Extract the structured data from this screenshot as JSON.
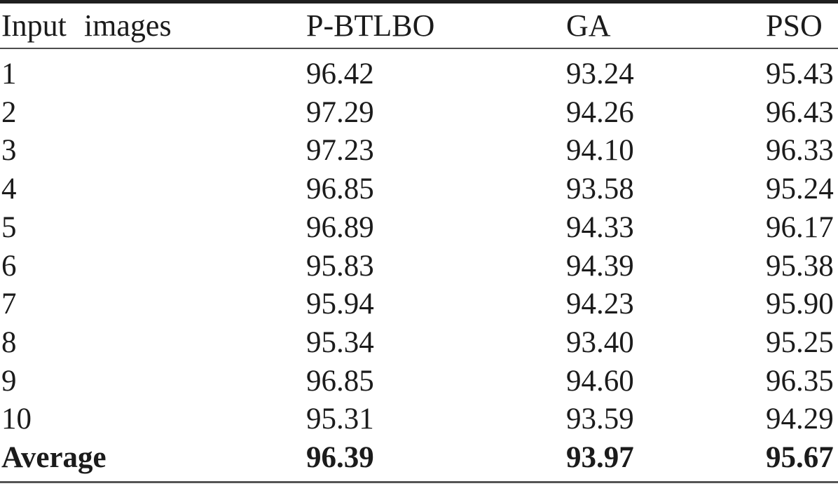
{
  "table": {
    "columns": [
      "Input images",
      "P-BTLBO",
      "GA",
      "PSO"
    ],
    "rows": [
      {
        "label": "1",
        "pbtlbo": "96.42",
        "ga": "93.24",
        "pso": "95.43"
      },
      {
        "label": "2",
        "pbtlbo": "97.29",
        "ga": "94.26",
        "pso": "96.43"
      },
      {
        "label": "3",
        "pbtlbo": "97.23",
        "ga": "94.10",
        "pso": "96.33"
      },
      {
        "label": "4",
        "pbtlbo": "96.85",
        "ga": "93.58",
        "pso": "95.24"
      },
      {
        "label": "5",
        "pbtlbo": "96.89",
        "ga": "94.33",
        "pso": "96.17"
      },
      {
        "label": "6",
        "pbtlbo": "95.83",
        "ga": "94.39",
        "pso": "95.38"
      },
      {
        "label": "7",
        "pbtlbo": "95.94",
        "ga": "94.23",
        "pso": "95.90"
      },
      {
        "label": "8",
        "pbtlbo": "95.34",
        "ga": "93.40",
        "pso": "95.25"
      },
      {
        "label": "9",
        "pbtlbo": "96.85",
        "ga": "94.60",
        "pso": "96.35"
      },
      {
        "label": "10",
        "pbtlbo": "95.31",
        "ga": "93.59",
        "pso": "94.29"
      }
    ],
    "average": {
      "label": "Average",
      "pbtlbo": "96.39",
      "ga": "93.97",
      "pso": "95.67"
    }
  },
  "chart_data": {
    "type": "table",
    "columns": [
      "Input images",
      "P-BTLBO",
      "GA",
      "PSO"
    ],
    "rows": [
      [
        "1",
        96.42,
        93.24,
        95.43
      ],
      [
        "2",
        97.29,
        94.26,
        96.43
      ],
      [
        "3",
        97.23,
        94.1,
        96.33
      ],
      [
        "4",
        96.85,
        93.58,
        95.24
      ],
      [
        "5",
        96.89,
        94.33,
        96.17
      ],
      [
        "6",
        95.83,
        94.39,
        95.38
      ],
      [
        "7",
        95.94,
        94.23,
        95.9
      ],
      [
        "8",
        95.34,
        93.4,
        95.25
      ],
      [
        "9",
        96.85,
        94.6,
        96.35
      ],
      [
        "10",
        95.31,
        93.59,
        94.29
      ],
      [
        "Average",
        96.39,
        93.97,
        95.67
      ]
    ]
  }
}
